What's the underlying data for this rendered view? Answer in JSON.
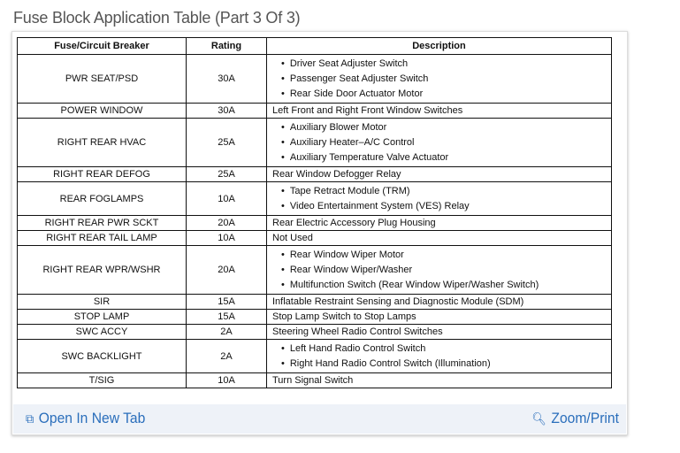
{
  "title": "Fuse Block Application Table (Part 3 Of 3)",
  "table": {
    "headers": [
      "Fuse/Circuit Breaker",
      "Rating",
      "Description"
    ],
    "rows": [
      {
        "fuse": "PWR SEAT/PSD",
        "rating": "30A",
        "items": [
          "Driver Seat Adjuster Switch",
          "Passenger Seat Adjuster Switch",
          "Rear Side Door Actuator Motor"
        ]
      },
      {
        "fuse": "POWER WINDOW",
        "rating": "30A",
        "desc": "Left Front and Right Front Window Switches"
      },
      {
        "fuse": "RIGHT REAR HVAC",
        "rating": "25A",
        "items": [
          "Auxiliary Blower Motor",
          "Auxiliary Heater–A/C Control",
          "Auxiliary Temperature Valve Actuator"
        ]
      },
      {
        "fuse": "RIGHT REAR DEFOG",
        "rating": "25A",
        "desc": "Rear Window Defogger Relay"
      },
      {
        "fuse": "REAR FOGLAMPS",
        "rating": "10A",
        "items": [
          "Tape Retract Module (TRM)",
          "Video Entertainment System (VES) Relay"
        ]
      },
      {
        "fuse": "RIGHT REAR PWR SCKT",
        "rating": "20A",
        "desc": "Rear Electric Accessory Plug Housing"
      },
      {
        "fuse": "RIGHT REAR TAIL LAMP",
        "rating": "10A",
        "desc": "Not Used"
      },
      {
        "fuse": "RIGHT REAR WPR/WSHR",
        "rating": "20A",
        "items": [
          "Rear Window Wiper Motor",
          "Rear Window Wiper/Washer",
          "Multifunction Switch (Rear Window Wiper/Washer Switch)"
        ]
      },
      {
        "fuse": "SIR",
        "rating": "15A",
        "desc": "Inflatable Restraint Sensing and Diagnostic Module (SDM)"
      },
      {
        "fuse": "STOP LAMP",
        "rating": "15A",
        "desc": "Stop Lamp Switch to Stop Lamps"
      },
      {
        "fuse": "SWC ACCY",
        "rating": "2A",
        "desc": "Steering Wheel Radio Control Switches"
      },
      {
        "fuse": "SWC BACKLIGHT",
        "rating": "2A",
        "items": [
          "Left Hand Radio Control Switch",
          "Right Hand Radio Control Switch (Illumination)"
        ]
      },
      {
        "fuse": "T/SIG",
        "rating": "10A",
        "desc": "Turn Signal Switch"
      }
    ]
  },
  "footer": {
    "open_label": "Open In New Tab",
    "open_icon": "open-new-tab-icon",
    "zoom_label": "Zoom/Print",
    "zoom_icon": "zoom-in-icon",
    "link_color": "#2a6ebb"
  }
}
